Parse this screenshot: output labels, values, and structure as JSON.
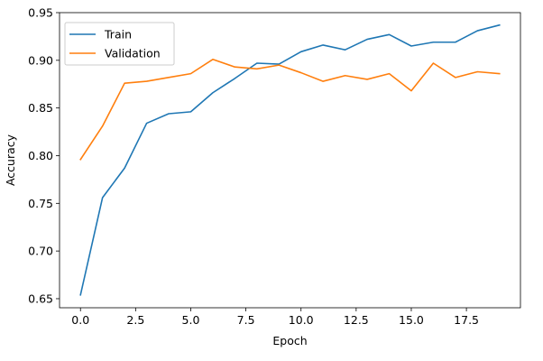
{
  "chart_data": {
    "type": "line",
    "title": "",
    "xlabel": "Epoch",
    "ylabel": "Accuracy",
    "xlim": [
      -0.95,
      19.95
    ],
    "ylim": [
      0.6405,
      0.95
    ],
    "x": [
      0,
      1,
      2,
      3,
      4,
      5,
      6,
      7,
      8,
      9,
      10,
      11,
      12,
      13,
      14,
      15,
      16,
      17,
      18,
      19
    ],
    "xticks": [
      0.0,
      2.5,
      5.0,
      7.5,
      10.0,
      12.5,
      15.0,
      17.5
    ],
    "xtick_labels": [
      "0.0",
      "2.5",
      "5.0",
      "7.5",
      "10.0",
      "12.5",
      "15.0",
      "17.5"
    ],
    "yticks": [
      0.65,
      0.7,
      0.75,
      0.8,
      0.85,
      0.9,
      0.95
    ],
    "ytick_labels": [
      "0.65",
      "0.70",
      "0.75",
      "0.80",
      "0.85",
      "0.90",
      "0.95"
    ],
    "grid": false,
    "legend_position": "top-left",
    "series": [
      {
        "name": "Train",
        "color": "#1f77b4",
        "values": [
          0.654,
          0.756,
          0.787,
          0.834,
          0.844,
          0.846,
          0.866,
          0.881,
          0.897,
          0.896,
          0.909,
          0.916,
          0.911,
          0.922,
          0.927,
          0.915,
          0.919,
          0.919,
          0.931,
          0.937
        ]
      },
      {
        "name": "Validation",
        "color": "#ff7f0e",
        "values": [
          0.796,
          0.831,
          0.876,
          0.878,
          0.882,
          0.886,
          0.901,
          0.893,
          0.891,
          0.895,
          0.887,
          0.878,
          0.884,
          0.88,
          0.886,
          0.868,
          0.897,
          0.882,
          0.888,
          0.886
        ]
      }
    ]
  }
}
